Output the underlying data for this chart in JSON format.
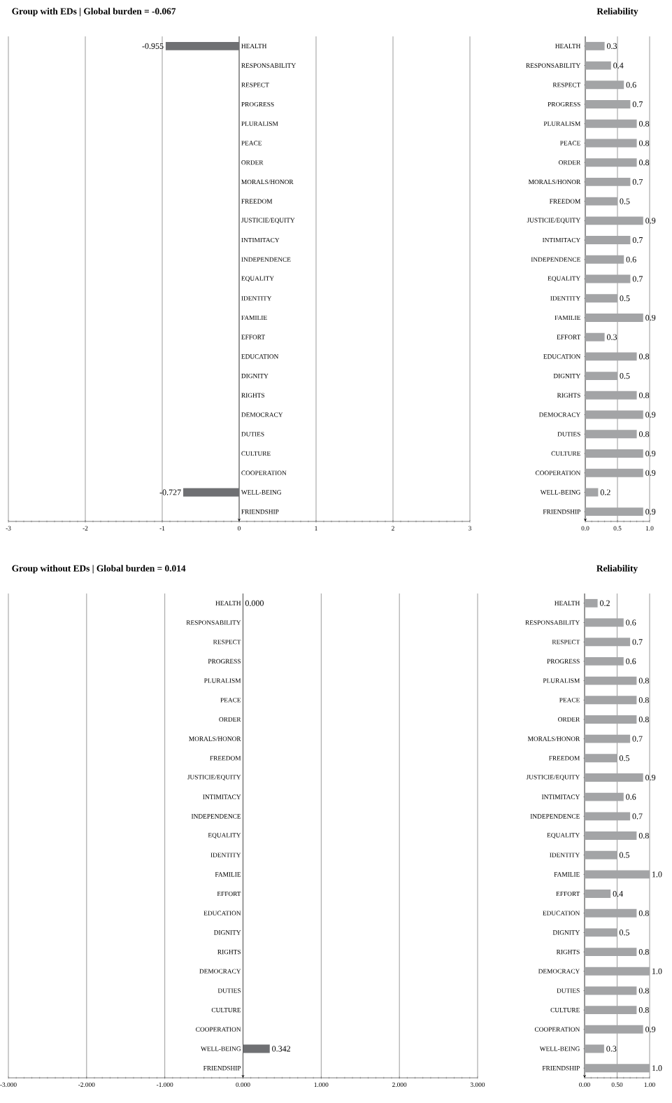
{
  "chart_data": [
    {
      "type": "bar",
      "orientation": "horizontal",
      "title": "Group with EDs | Global burden = -0.067",
      "categories": [
        "HEALTH",
        "RESPONSABILITY",
        "RESPECT",
        "PROGRESS",
        "PLURALISM",
        "PEACE",
        "ORDER",
        "MORALS/HONOR",
        "FREEDOM",
        "JUSTICIE/EQUITY",
        "INTIMITACY",
        "INDEPENDENCE",
        "EQUALITY",
        "IDENTITY",
        "FAMILIE",
        "EFFORT",
        "EDUCATION",
        "DIGNITY",
        "RIGHTS",
        "DEMOCRACY",
        "DUTIES",
        "CULTURE",
        "COOPERATION",
        "WELL-BEING",
        "FRIENDSHIP"
      ],
      "values": [
        -0.955,
        null,
        null,
        null,
        null,
        null,
        null,
        null,
        null,
        null,
        null,
        null,
        null,
        null,
        null,
        null,
        null,
        null,
        null,
        null,
        null,
        null,
        null,
        -0.727,
        null
      ],
      "value_labels": [
        "-0.955",
        null,
        null,
        null,
        null,
        null,
        null,
        null,
        null,
        null,
        null,
        null,
        null,
        null,
        null,
        null,
        null,
        null,
        null,
        null,
        null,
        null,
        null,
        "-0.727",
        null
      ],
      "color": "#6f7073",
      "xlim": [
        -3,
        3
      ],
      "xticks": [
        -3,
        -2,
        -1,
        0,
        1,
        2,
        3
      ],
      "grid": "x"
    },
    {
      "type": "bar",
      "orientation": "horizontal",
      "title": "Reliability",
      "categories": [
        "HEALTH",
        "RESPONSABILITY",
        "RESPECT",
        "PROGRESS",
        "PLURALISM",
        "PEACE",
        "ORDER",
        "MORALS/HONOR",
        "FREEDOM",
        "JUSTICIE/EQUITY",
        "INTIMITACY",
        "INDEPENDENCE",
        "EQUALITY",
        "IDENTITY",
        "FAMILIE",
        "EFFORT",
        "EDUCATION",
        "DIGNITY",
        "RIGHTS",
        "DEMOCRACY",
        "DUTIES",
        "CULTURE",
        "COOPERATION",
        "WELL-BEING",
        "FRIENDSHIP"
      ],
      "values": [
        0.3,
        0.4,
        0.6,
        0.7,
        0.8,
        0.8,
        0.8,
        0.7,
        0.5,
        0.9,
        0.7,
        0.6,
        0.7,
        0.5,
        0.9,
        0.3,
        0.8,
        0.5,
        0.8,
        0.9,
        0.8,
        0.9,
        0.9,
        0.2,
        0.9
      ],
      "value_labels": [
        "0.3",
        "0.4",
        "0.6",
        "0.7",
        "0.8",
        "0.8",
        "0.8",
        "0.7",
        "0.5",
        "0.9",
        "0.7",
        "0.6",
        "0.7",
        "0.5",
        "0.9",
        "0.3",
        "0.8",
        "0.5",
        "0.8",
        "0.9",
        "0.8",
        "0.9",
        "0.9",
        "0.2",
        "0.9"
      ],
      "color": "#a3a4a6",
      "xlim": [
        0,
        1
      ],
      "xticks": [
        {
          "value": 0,
          "label": "0.0"
        },
        {
          "value": 0.5,
          "label": "0.5"
        },
        {
          "value": 1,
          "label": "1.0"
        }
      ],
      "grid": "x"
    },
    {
      "type": "bar",
      "orientation": "horizontal",
      "title": "Group without EDs | Global burden = 0.014",
      "categories": [
        "HEALTH",
        "RESPONSABILITY",
        "RESPECT",
        "PROGRESS",
        "PLURALISM",
        "PEACE",
        "ORDER",
        "MORALS/HONOR",
        "FREEDOM",
        "JUSTICIE/EQUITY",
        "INTIMITACY",
        "INDEPENDENCE",
        "EQUALITY",
        "IDENTITY",
        "FAMILIE",
        "EFFORT",
        "EDUCATION",
        "DIGNITY",
        "RIGHTS",
        "DEMOCRACY",
        "DUTIES",
        "CULTURE",
        "COOPERATION",
        "WELL-BEING",
        "FRIENDSHIP"
      ],
      "values": [
        0.0,
        null,
        null,
        null,
        null,
        null,
        null,
        null,
        null,
        null,
        null,
        null,
        null,
        null,
        null,
        null,
        null,
        null,
        null,
        null,
        null,
        null,
        null,
        0.342,
        null
      ],
      "value_labels": [
        "0.000",
        null,
        null,
        null,
        null,
        null,
        null,
        null,
        null,
        null,
        null,
        null,
        null,
        null,
        null,
        null,
        null,
        null,
        null,
        null,
        null,
        null,
        null,
        "0.342",
        null
      ],
      "color": "#6f7073",
      "xlim": [
        -3,
        3
      ],
      "xticks": [
        {
          "value": -3,
          "label": "-3.000"
        },
        {
          "value": -2,
          "label": "-2.000"
        },
        {
          "value": -1,
          "label": "-1.000"
        },
        {
          "value": 0,
          "label": "0.000"
        },
        {
          "value": 1,
          "label": "1.000"
        },
        {
          "value": 2,
          "label": "2.000"
        },
        {
          "value": 3,
          "label": "3.000"
        }
      ],
      "grid": "x"
    },
    {
      "type": "bar",
      "orientation": "horizontal",
      "title": "Reliability",
      "categories": [
        "HEALTH",
        "RESPONSABILITY",
        "RESPECT",
        "PROGRESS",
        "PLURALISM",
        "PEACE",
        "ORDER",
        "MORALS/HONOR",
        "FREEDOM",
        "JUSTICIE/EQUITY",
        "INTIMITACY",
        "INDEPENDENCE",
        "EQUALITY",
        "IDENTITY",
        "FAMILIE",
        "EFFORT",
        "EDUCATION",
        "DIGNITY",
        "RIGHTS",
        "DEMOCRACY",
        "DUTIES",
        "CULTURE",
        "COOPERATION",
        "WELL-BEING",
        "FRIENDSHIP"
      ],
      "values": [
        0.2,
        0.6,
        0.7,
        0.6,
        0.8,
        0.8,
        0.8,
        0.7,
        0.5,
        0.9,
        0.6,
        0.7,
        0.8,
        0.5,
        1.0,
        0.4,
        0.8,
        0.5,
        0.8,
        1.0,
        0.8,
        0.8,
        0.9,
        0.3,
        1.0
      ],
      "value_labels": [
        "0.2",
        "0.6",
        "0.7",
        "0.6",
        "0.8",
        "0.8",
        "0.8",
        "0.7",
        "0.5",
        "0.9",
        "0.6",
        "0.7",
        "0.8",
        "0.5",
        "1.0",
        "0.4",
        "0.8",
        "0.5",
        "0.8",
        "1.0",
        "0.8",
        "0.8",
        "0.9",
        "0.3",
        "1.0"
      ],
      "color": "#a3a4a6",
      "xlim": [
        0,
        1
      ],
      "xticks": [
        {
          "value": 0,
          "label": "0.00"
        },
        {
          "value": 0.5,
          "label": "0.50"
        },
        {
          "value": 1,
          "label": "1.00"
        }
      ],
      "grid": "x"
    }
  ]
}
